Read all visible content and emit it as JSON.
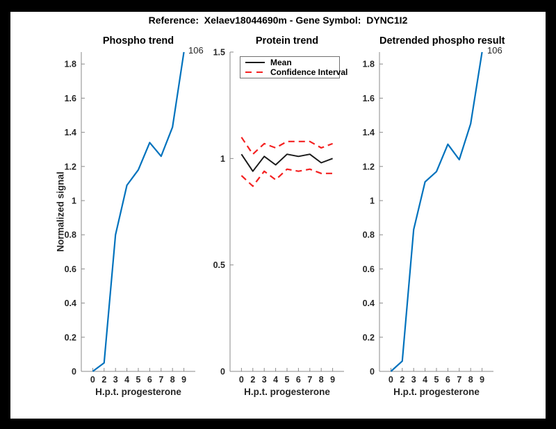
{
  "colors": {
    "window_background": "#000000",
    "figure_background": "#ffffff",
    "axis_line": "#8a8a8a",
    "tick_label": "#262626",
    "matlab_blue": "#0072bd",
    "ci_red": "#f42121",
    "mean_black": "#1a1a1a"
  },
  "figure": {
    "title": "Reference:  Xelaev18044690m - Gene Symbol:  DYNC1I2"
  },
  "chart_data": [
    {
      "type": "line",
      "title": "Phospho trend",
      "xlabel": "H.p.t. progesterone",
      "ylabel": "Normalized signal",
      "x_tick_labels": [
        "0",
        "2",
        "3",
        "4",
        "5",
        "6",
        "7",
        "8",
        "9"
      ],
      "y_ticks": [
        0,
        0.2,
        0.4,
        0.6,
        0.8,
        1,
        1.2,
        1.4,
        1.6,
        1.8
      ],
      "y_tick_labels": [
        "0",
        "0.2",
        "0.4",
        "0.6",
        "0.8",
        "1",
        "1.2",
        "1.4",
        "1.6",
        "1.8"
      ],
      "ylim": [
        0,
        1.87
      ],
      "grid": false,
      "legend": null,
      "end_label": "106",
      "series": [
        {
          "name": "phospho-signal",
          "color": "#0072bd",
          "style": "solid",
          "width": 2.2,
          "values": [
            0,
            0.05,
            0.8,
            1.09,
            1.18,
            1.34,
            1.26,
            1.43,
            1.87
          ]
        }
      ]
    },
    {
      "type": "line",
      "title": "Protein trend",
      "xlabel": "H.p.t. progesterone",
      "ylabel": "",
      "x_tick_labels": [
        "0",
        "2",
        "3",
        "4",
        "5",
        "6",
        "7",
        "8",
        "9"
      ],
      "y_ticks": [
        0,
        0.5,
        1,
        1.5
      ],
      "y_tick_labels": [
        "0",
        "0.5",
        "1",
        "1.5"
      ],
      "ylim": [
        0,
        1.5
      ],
      "grid": false,
      "legend": {
        "position": "northwest",
        "entries": [
          {
            "label": "Mean",
            "color": "#1a1a1a",
            "style": "solid"
          },
          {
            "label": "Confidence Interval",
            "color": "#f42121",
            "style": "dashed"
          }
        ]
      },
      "end_label": "",
      "series": [
        {
          "name": "protein-mean",
          "color": "#1a1a1a",
          "style": "solid",
          "width": 2,
          "values": [
            1.02,
            0.94,
            1.01,
            0.97,
            1.02,
            1.01,
            1.02,
            0.98,
            1.0
          ]
        },
        {
          "name": "ci-upper",
          "color": "#f42121",
          "style": "dashed",
          "width": 2.2,
          "values": [
            1.1,
            1.02,
            1.07,
            1.05,
            1.08,
            1.08,
            1.08,
            1.05,
            1.07
          ]
        },
        {
          "name": "ci-lower",
          "color": "#f42121",
          "style": "dashed",
          "width": 2.2,
          "values": [
            0.92,
            0.87,
            0.94,
            0.9,
            0.95,
            0.94,
            0.95,
            0.93,
            0.93
          ]
        }
      ]
    },
    {
      "type": "line",
      "title": "Detrended phospho result",
      "xlabel": "H.p.t. progesterone",
      "ylabel": "",
      "x_tick_labels": [
        "0",
        "2",
        "3",
        "4",
        "5",
        "6",
        "7",
        "8",
        "9"
      ],
      "y_ticks": [
        0,
        0.2,
        0.4,
        0.6,
        0.8,
        1,
        1.2,
        1.4,
        1.6,
        1.8
      ],
      "y_tick_labels": [
        "0",
        "0.2",
        "0.4",
        "0.6",
        "0.8",
        "1",
        "1.2",
        "1.4",
        "1.6",
        "1.8"
      ],
      "ylim": [
        0,
        1.87
      ],
      "grid": false,
      "legend": null,
      "end_label": "106",
      "series": [
        {
          "name": "detrended-phospho-signal",
          "color": "#0072bd",
          "style": "solid",
          "width": 2.2,
          "values": [
            0,
            0.06,
            0.83,
            1.11,
            1.17,
            1.33,
            1.24,
            1.45,
            1.87
          ]
        }
      ]
    }
  ]
}
